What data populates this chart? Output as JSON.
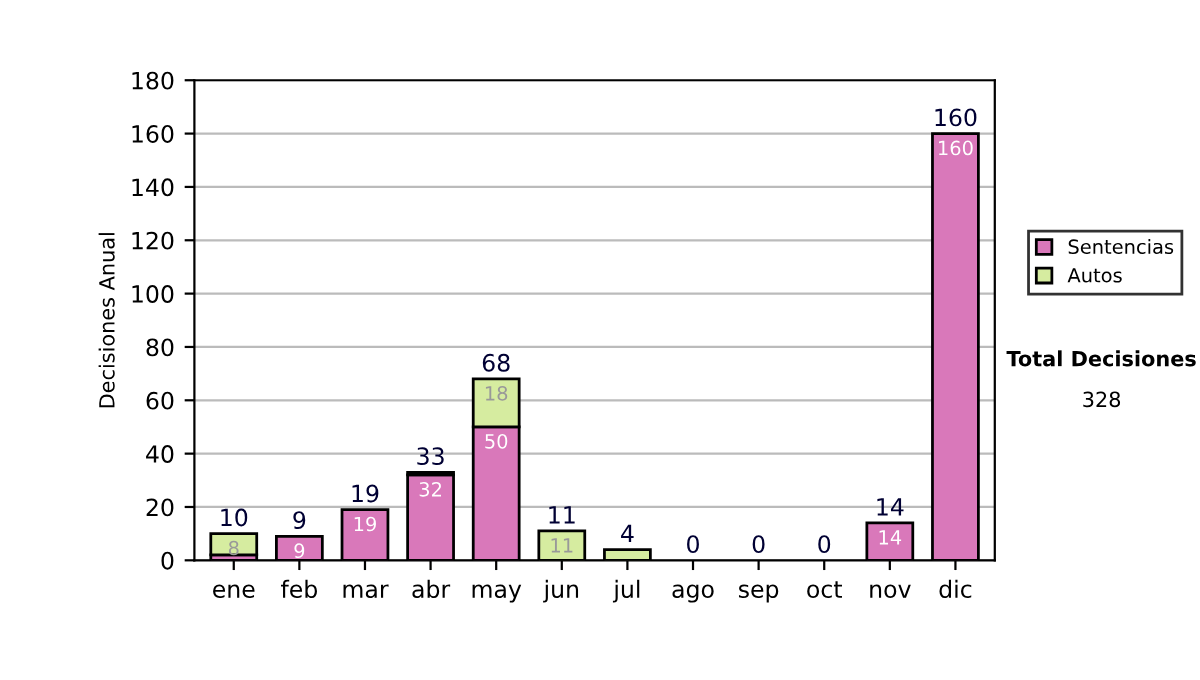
{
  "chart_data": {
    "type": "bar",
    "stacked": true,
    "ylabel": "Decisiones Anual",
    "categories": [
      "ene",
      "feb",
      "mar",
      "abr",
      "may",
      "jun",
      "jul",
      "ago",
      "sep",
      "oct",
      "nov",
      "dic"
    ],
    "series": [
      {
        "name": "Sentencias",
        "color": "#d978ba",
        "values": [
          2,
          9,
          19,
          32,
          50,
          0,
          0,
          0,
          0,
          0,
          14,
          160
        ],
        "value_labels": [
          null,
          "9",
          "19",
          "32",
          "50",
          null,
          null,
          null,
          null,
          null,
          "14",
          "160"
        ]
      },
      {
        "name": "Autos",
        "color": "#d6eca0",
        "values": [
          8,
          0,
          0,
          1,
          18,
          11,
          4,
          0,
          0,
          0,
          0,
          0
        ],
        "value_labels": [
          "8",
          null,
          null,
          null,
          "18",
          "11",
          null,
          null,
          null,
          null,
          null,
          null
        ]
      }
    ],
    "totals": [
      "10",
      "9",
      "19",
      "33",
      "68",
      "11",
      "4",
      "0",
      "0",
      "0",
      "14",
      "160"
    ],
    "ylim": [
      0,
      180
    ],
    "yticks": [
      0,
      20,
      40,
      60,
      80,
      100,
      120,
      140,
      160,
      180
    ],
    "grid": "y",
    "legend": "right",
    "annotations": [
      "Total Decisiones",
      "328"
    ]
  }
}
